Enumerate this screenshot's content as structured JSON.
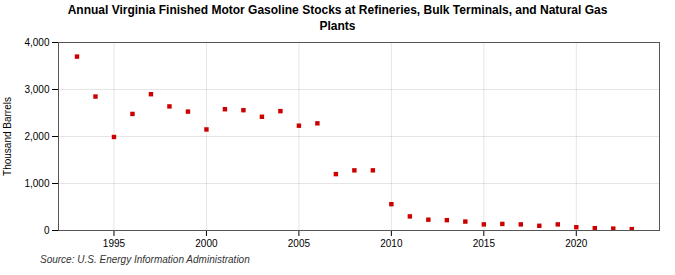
{
  "chart_data": {
    "type": "scatter",
    "title": "Annual Virginia Finished Motor Gasoline Stocks at Refineries, Bulk Terminals, and Natural Gas\nPlants",
    "ylabel": "Thousand Barrels",
    "source": "Source: U.S. Energy Information Administration",
    "x": [
      1993,
      1994,
      1995,
      1996,
      1997,
      1998,
      1999,
      2000,
      2001,
      2002,
      2003,
      2004,
      2005,
      2006,
      2007,
      2008,
      2009,
      2010,
      2011,
      2012,
      2013,
      2014,
      2015,
      2016,
      2017,
      2018,
      2019,
      2020,
      2021,
      2022,
      2023
    ],
    "values": [
      3700,
      2850,
      1990,
      2480,
      2900,
      2640,
      2530,
      2150,
      2580,
      2560,
      2420,
      2540,
      2230,
      2280,
      1200,
      1280,
      1280,
      560,
      300,
      230,
      220,
      190,
      130,
      140,
      130,
      100,
      130,
      70,
      50,
      40,
      30
    ],
    "color": "#cc0000",
    "marker": "square",
    "xlim": [
      1992,
      2024.5
    ],
    "xticks": [
      1995,
      2000,
      2005,
      2010,
      2015,
      2020
    ],
    "ylim": [
      0,
      4000
    ],
    "yticks": [
      0,
      {
        "value": 1000,
        "label": "1,000"
      },
      {
        "value": 2000,
        "label": "2,000"
      },
      {
        "value": 3000,
        "label": "3,000"
      },
      {
        "value": 4000,
        "label": "4,000"
      }
    ],
    "grid": true
  }
}
